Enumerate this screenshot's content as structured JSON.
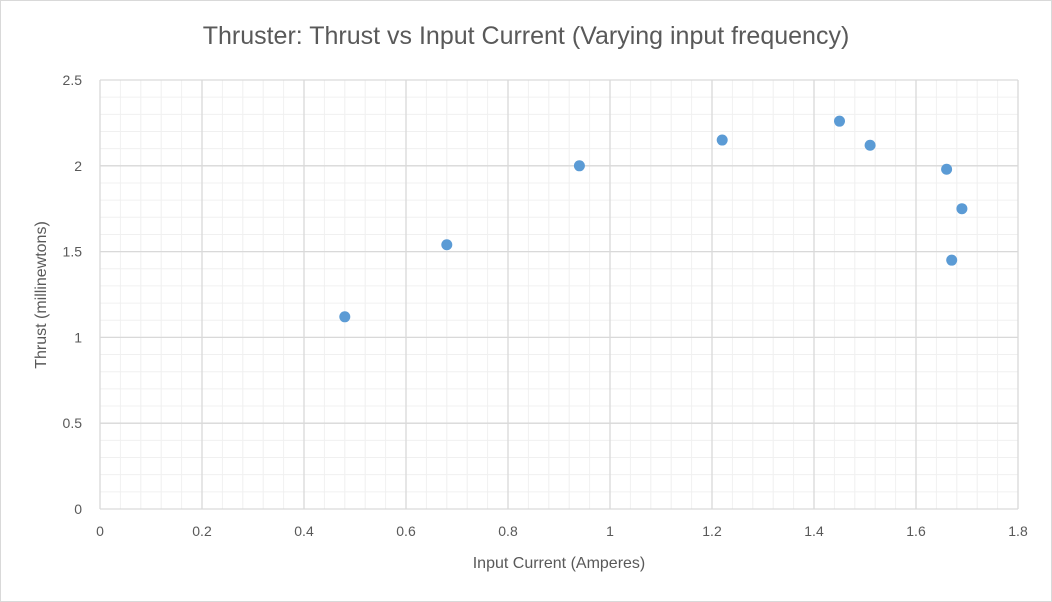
{
  "chart_data": {
    "type": "scatter",
    "title": "Thruster: Thrust vs Input Current (Varying input frequency)",
    "xlabel": "Input Current (Amperes)",
    "ylabel": "Thrust (millinewtons)",
    "xlim": [
      0,
      1.8
    ],
    "ylim": [
      0,
      2.5
    ],
    "x_ticks": [
      "0",
      "0.2",
      "0.4",
      "0.6",
      "0.8",
      "1",
      "1.2",
      "1.4",
      "1.6",
      "1.8"
    ],
    "y_ticks": [
      "0",
      "0.5",
      "1",
      "1.5",
      "2",
      "2.5"
    ],
    "x_minor_step": 0.04,
    "y_minor_step": 0.1,
    "grid": true,
    "legend": "none",
    "series": [
      {
        "color": "#5b9bd5",
        "points": [
          {
            "x": 0.48,
            "y": 1.12
          },
          {
            "x": 0.68,
            "y": 1.54
          },
          {
            "x": 0.94,
            "y": 2.0
          },
          {
            "x": 1.22,
            "y": 2.15
          },
          {
            "x": 1.45,
            "y": 2.26
          },
          {
            "x": 1.51,
            "y": 2.12
          },
          {
            "x": 1.66,
            "y": 1.98
          },
          {
            "x": 1.69,
            "y": 1.75
          },
          {
            "x": 1.67,
            "y": 1.45
          }
        ]
      }
    ]
  }
}
